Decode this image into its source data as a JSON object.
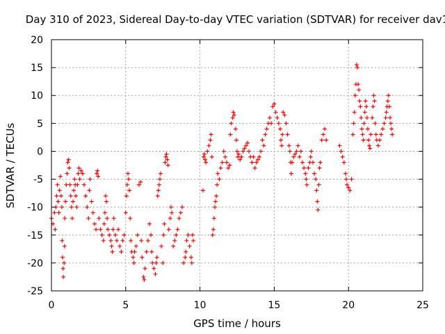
{
  "chart_data": {
    "type": "scatter",
    "title": "Day 310 of 2023, Sidereal Day-to-day VTEC variation (SDTVAR) for receiver dav1",
    "xlabel": "GPS time / hours",
    "ylabel": "SDTVAR / TECUs",
    "xlim": [
      0,
      25
    ],
    "ylim": [
      -25,
      20
    ],
    "xticks": [
      "0",
      "5",
      "10",
      "15",
      "20",
      "25"
    ],
    "yticks": [
      "-25",
      "-20",
      "-15",
      "-10",
      "-5",
      "0",
      "5",
      "10",
      "15",
      "20"
    ],
    "grid": true,
    "marker": "+",
    "color": "#ff0000",
    "series": [
      {
        "name": "dav1",
        "points": [
          [
            0.0,
            -12
          ],
          [
            0.1,
            -13
          ],
          [
            0.2,
            -11
          ],
          [
            0.25,
            -14
          ],
          [
            0.3,
            -10
          ],
          [
            0.35,
            -8
          ],
          [
            0.4,
            -6
          ],
          [
            0.45,
            -9
          ],
          [
            0.5,
            -11
          ],
          [
            0.55,
            -7
          ],
          [
            0.6,
            -4.5
          ],
          [
            0.65,
            -8
          ],
          [
            0.7,
            -10
          ],
          [
            0.72,
            -16
          ],
          [
            0.75,
            -19
          ],
          [
            0.78,
            -21
          ],
          [
            0.8,
            -22.5
          ],
          [
            0.85,
            -20
          ],
          [
            0.88,
            -17
          ],
          [
            0.9,
            -12
          ],
          [
            0.95,
            -9
          ],
          [
            1.0,
            -6
          ],
          [
            1.05,
            -4
          ],
          [
            1.1,
            -2
          ],
          [
            1.15,
            -1.5
          ],
          [
            1.2,
            -3
          ],
          [
            1.25,
            -6
          ],
          [
            1.3,
            -8
          ],
          [
            1.35,
            -10
          ],
          [
            1.4,
            -12
          ],
          [
            1.45,
            -9
          ],
          [
            1.5,
            -7
          ],
          [
            1.55,
            -5
          ],
          [
            1.6,
            -6
          ],
          [
            1.65,
            -8
          ],
          [
            1.7,
            -10
          ],
          [
            1.75,
            -6
          ],
          [
            1.8,
            -4
          ],
          [
            1.85,
            -3
          ],
          [
            1.9,
            -5
          ],
          [
            2.0,
            -3.5
          ],
          [
            2.1,
            -4
          ],
          [
            2.2,
            -6
          ],
          [
            2.3,
            -8
          ],
          [
            2.4,
            -10
          ],
          [
            2.5,
            -12
          ],
          [
            2.55,
            -7
          ],
          [
            2.6,
            -5
          ],
          [
            2.7,
            -9
          ],
          [
            2.8,
            -11
          ],
          [
            2.9,
            -13
          ],
          [
            3.0,
            -14
          ],
          [
            3.05,
            -4
          ],
          [
            3.1,
            -3.5
          ],
          [
            3.15,
            -4.5
          ],
          [
            3.2,
            -12
          ],
          [
            3.3,
            -14
          ],
          [
            3.4,
            -15
          ],
          [
            3.5,
            -16
          ],
          [
            3.55,
            -13
          ],
          [
            3.6,
            -11
          ],
          [
            3.65,
            -8
          ],
          [
            3.7,
            -9
          ],
          [
            3.75,
            -12
          ],
          [
            3.8,
            -14
          ],
          [
            3.9,
            -15
          ],
          [
            4.0,
            -16
          ],
          [
            4.05,
            -17
          ],
          [
            4.1,
            -18
          ],
          [
            4.15,
            -14
          ],
          [
            4.2,
            -12
          ],
          [
            4.3,
            -15
          ],
          [
            4.4,
            -16
          ],
          [
            4.5,
            -14
          ],
          [
            4.6,
            -17
          ],
          [
            4.7,
            -18
          ],
          [
            4.8,
            -16
          ],
          [
            4.9,
            -15
          ],
          [
            5.0,
            -11
          ],
          [
            5.05,
            -8
          ],
          [
            5.1,
            -6
          ],
          [
            5.15,
            -4
          ],
          [
            5.2,
            -5
          ],
          [
            5.25,
            -7
          ],
          [
            5.3,
            -12
          ],
          [
            5.35,
            -16
          ],
          [
            5.4,
            -18
          ],
          [
            5.5,
            -19
          ],
          [
            5.55,
            -20
          ],
          [
            5.6,
            -18
          ],
          [
            5.7,
            -17
          ],
          [
            5.8,
            -15
          ],
          [
            5.9,
            -6
          ],
          [
            6.0,
            -5.5
          ],
          [
            6.05,
            -16
          ],
          [
            6.1,
            -19
          ],
          [
            6.2,
            -22.5
          ],
          [
            6.25,
            -23
          ],
          [
            6.3,
            -21
          ],
          [
            6.4,
            -18
          ],
          [
            6.5,
            -16
          ],
          [
            6.6,
            -13
          ],
          [
            6.7,
            -15
          ],
          [
            6.75,
            -18
          ],
          [
            6.8,
            -20
          ],
          [
            6.9,
            -21
          ],
          [
            7.0,
            -22
          ],
          [
            7.05,
            -20
          ],
          [
            7.1,
            -19
          ],
          [
            7.15,
            -8
          ],
          [
            7.2,
            -7
          ],
          [
            7.25,
            -6
          ],
          [
            7.3,
            -5
          ],
          [
            7.35,
            -4
          ],
          [
            7.4,
            -17
          ],
          [
            7.5,
            -20
          ],
          [
            7.55,
            -15
          ],
          [
            7.6,
            -13
          ],
          [
            7.65,
            -2
          ],
          [
            7.7,
            -1
          ],
          [
            7.75,
            -0.5
          ],
          [
            7.8,
            -1.5
          ],
          [
            7.85,
            -2.5
          ],
          [
            7.9,
            -14
          ],
          [
            8.0,
            -12
          ],
          [
            8.05,
            -10
          ],
          [
            8.1,
            -11
          ],
          [
            8.2,
            -17
          ],
          [
            8.3,
            -16
          ],
          [
            8.4,
            -15
          ],
          [
            8.5,
            -14
          ],
          [
            8.6,
            -12
          ],
          [
            8.7,
            -11
          ],
          [
            8.8,
            -10
          ],
          [
            8.9,
            -20
          ],
          [
            9.0,
            -19
          ],
          [
            9.05,
            -18
          ],
          [
            9.1,
            -16
          ],
          [
            9.2,
            -15
          ],
          [
            9.3,
            -17
          ],
          [
            9.4,
            -19
          ],
          [
            9.45,
            -20
          ],
          [
            9.5,
            -15
          ],
          [
            9.55,
            -16
          ],
          [
            10.2,
            -7
          ],
          [
            10.25,
            -1
          ],
          [
            10.3,
            -0.5
          ],
          [
            10.35,
            -1.5
          ],
          [
            10.4,
            -2
          ],
          [
            10.5,
            0
          ],
          [
            10.6,
            1
          ],
          [
            10.7,
            2
          ],
          [
            10.75,
            3
          ],
          [
            10.8,
            -1
          ],
          [
            10.85,
            -15
          ],
          [
            10.9,
            -14
          ],
          [
            10.95,
            -12
          ],
          [
            11.0,
            -10
          ],
          [
            11.05,
            -9
          ],
          [
            11.1,
            -8
          ],
          [
            11.15,
            -6
          ],
          [
            11.2,
            -4
          ],
          [
            11.3,
            -5
          ],
          [
            11.4,
            -3
          ],
          [
            11.5,
            -2
          ],
          [
            11.6,
            0
          ],
          [
            11.7,
            -1
          ],
          [
            11.8,
            -2
          ],
          [
            11.9,
            -3
          ],
          [
            12.0,
            -2.5
          ],
          [
            12.05,
            3
          ],
          [
            12.1,
            5
          ],
          [
            12.2,
            6
          ],
          [
            12.25,
            7
          ],
          [
            12.3,
            6.5
          ],
          [
            12.4,
            4
          ],
          [
            12.45,
            2
          ],
          [
            12.5,
            0
          ],
          [
            12.55,
            -1
          ],
          [
            12.6,
            -0.5
          ],
          [
            12.7,
            -1.5
          ],
          [
            12.8,
            -1
          ],
          [
            12.9,
            0
          ],
          [
            13.0,
            0.5
          ],
          [
            13.1,
            1
          ],
          [
            13.2,
            1.5
          ],
          [
            13.3,
            0
          ],
          [
            13.4,
            -1
          ],
          [
            13.5,
            -2
          ],
          [
            13.6,
            -1
          ],
          [
            13.7,
            -3
          ],
          [
            13.8,
            -2
          ],
          [
            13.9,
            -1.5
          ],
          [
            14.0,
            -1
          ],
          [
            14.1,
            0
          ],
          [
            14.2,
            2
          ],
          [
            14.3,
            1
          ],
          [
            14.4,
            3
          ],
          [
            14.5,
            4
          ],
          [
            14.6,
            5
          ],
          [
            14.7,
            6
          ],
          [
            14.8,
            5
          ],
          [
            14.9,
            8
          ],
          [
            15.0,
            8.5
          ],
          [
            15.1,
            7
          ],
          [
            15.2,
            6
          ],
          [
            15.3,
            5
          ],
          [
            15.4,
            4
          ],
          [
            15.45,
            2
          ],
          [
            15.5,
            1
          ],
          [
            15.55,
            3
          ],
          [
            15.6,
            7
          ],
          [
            15.7,
            6.5
          ],
          [
            15.8,
            5
          ],
          [
            15.9,
            3
          ],
          [
            16.0,
            1
          ],
          [
            16.05,
            0
          ],
          [
            16.1,
            -2
          ],
          [
            16.15,
            -4
          ],
          [
            16.2,
            -2
          ],
          [
            16.3,
            -1
          ],
          [
            16.4,
            -0.5
          ],
          [
            16.5,
            0
          ],
          [
            16.6,
            1
          ],
          [
            16.7,
            -1
          ],
          [
            16.8,
            0
          ],
          [
            16.9,
            -2
          ],
          [
            17.0,
            -3
          ],
          [
            17.1,
            -4
          ],
          [
            17.15,
            -5
          ],
          [
            17.2,
            -6
          ],
          [
            17.3,
            -3
          ],
          [
            17.4,
            -2
          ],
          [
            17.45,
            -1
          ],
          [
            17.5,
            0
          ],
          [
            17.6,
            -2
          ],
          [
            17.7,
            -4
          ],
          [
            17.8,
            -5
          ],
          [
            17.85,
            -7
          ],
          [
            17.9,
            -9
          ],
          [
            17.95,
            -10.5
          ],
          [
            18.0,
            -6
          ],
          [
            18.05,
            -3
          ],
          [
            18.1,
            -2
          ],
          [
            18.2,
            2
          ],
          [
            18.3,
            3
          ],
          [
            18.4,
            4
          ],
          [
            18.5,
            2
          ],
          [
            19.4,
            1
          ],
          [
            19.5,
            0
          ],
          [
            19.6,
            -1
          ],
          [
            19.7,
            -2
          ],
          [
            19.8,
            -4
          ],
          [
            19.85,
            -5
          ],
          [
            19.9,
            -6
          ],
          [
            20.0,
            -6.5
          ],
          [
            20.1,
            -7
          ],
          [
            20.2,
            -5
          ],
          [
            20.3,
            3
          ],
          [
            20.35,
            5
          ],
          [
            20.4,
            7
          ],
          [
            20.45,
            10
          ],
          [
            20.5,
            12
          ],
          [
            20.55,
            15.5
          ],
          [
            20.6,
            15
          ],
          [
            20.65,
            12
          ],
          [
            20.7,
            11
          ],
          [
            20.75,
            9
          ],
          [
            20.8,
            8
          ],
          [
            20.85,
            6
          ],
          [
            20.9,
            4
          ],
          [
            20.95,
            3
          ],
          [
            21.0,
            2
          ],
          [
            21.05,
            5
          ],
          [
            21.1,
            7
          ],
          [
            21.15,
            9
          ],
          [
            21.2,
            8
          ],
          [
            21.25,
            6
          ],
          [
            21.3,
            4
          ],
          [
            21.35,
            2
          ],
          [
            21.4,
            1
          ],
          [
            21.45,
            0.5
          ],
          [
            21.5,
            3
          ],
          [
            21.6,
            6
          ],
          [
            21.65,
            8
          ],
          [
            21.7,
            10
          ],
          [
            21.75,
            9
          ],
          [
            21.8,
            5
          ],
          [
            21.85,
            3
          ],
          [
            21.9,
            2
          ],
          [
            22.0,
            1
          ],
          [
            22.1,
            2
          ],
          [
            22.2,
            3
          ],
          [
            22.3,
            4
          ],
          [
            22.4,
            5
          ],
          [
            22.5,
            6
          ],
          [
            22.55,
            7
          ],
          [
            22.6,
            8
          ],
          [
            22.65,
            9
          ],
          [
            22.7,
            10
          ],
          [
            22.75,
            8
          ],
          [
            22.8,
            6
          ],
          [
            22.85,
            5
          ],
          [
            22.9,
            4
          ],
          [
            22.95,
            3
          ]
        ]
      }
    ]
  }
}
